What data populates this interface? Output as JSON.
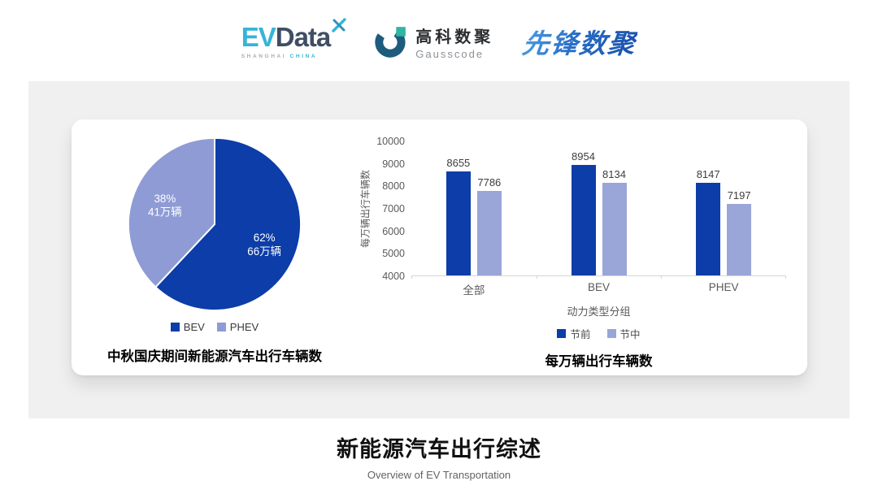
{
  "header": {
    "evdata": {
      "ev": "EV",
      "data": "Data",
      "sub_left": "SHANGHAI",
      "sub_right": "CHINA"
    },
    "gausscode": {
      "name_cn": "高科数聚",
      "name_en": "Gausscode"
    },
    "pioneer": {
      "name": "先锋数聚"
    }
  },
  "footer": {
    "title": "新能源汽车出行综述",
    "subtitle": "Overview of EV Transportation"
  },
  "colors": {
    "series_dark": "#0c3da8",
    "series_light": "#9aa5d8",
    "pie_light": "#8f9bd4",
    "panel_bg": "#f0f0f0",
    "axis_text": "#595959"
  },
  "chart_data": [
    {
      "type": "pie",
      "title": "中秋国庆期间新能源汽车出行车辆数",
      "legend_position": "bottom",
      "start_angle_deg": 0,
      "slices": [
        {
          "label": "BEV",
          "percent": 62,
          "value": "66万辆",
          "color": "#0c3da8",
          "text_color": "#ffffff"
        },
        {
          "label": "PHEV",
          "percent": 38,
          "value": "41万辆",
          "color": "#8f9bd4",
          "text_color": "#ffffff"
        }
      ]
    },
    {
      "type": "bar",
      "title": "每万辆出行车辆数",
      "ylabel": "每万辆出行车辆数",
      "xlabel": "动力类型分组",
      "categories": [
        "全部",
        "BEV",
        "PHEV"
      ],
      "series": [
        {
          "name": "节前",
          "color": "#0c3da8",
          "values": [
            8655,
            8954,
            8147
          ]
        },
        {
          "name": "节中",
          "color": "#9aa5d8",
          "values": [
            7786,
            8134,
            7197
          ]
        }
      ],
      "ylim": [
        4000,
        10000
      ],
      "ytick_step": 1000,
      "grid": false,
      "legend_position": "bottom"
    }
  ]
}
